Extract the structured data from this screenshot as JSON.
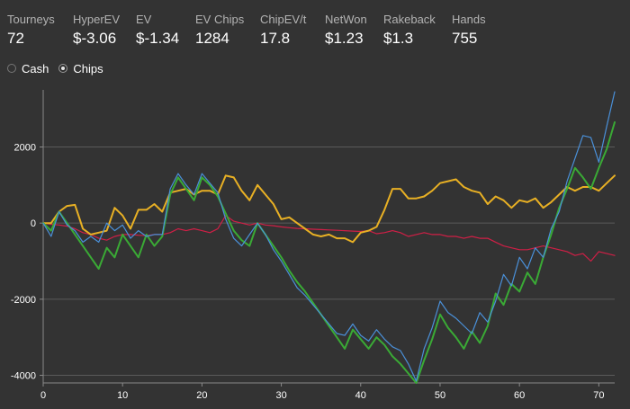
{
  "stats": [
    {
      "label": "Tourneys",
      "value": "72"
    },
    {
      "label": "HyperEV",
      "value": "$-3.06"
    },
    {
      "label": "EV",
      "value": "$-1.34"
    },
    {
      "label": "EV Chips",
      "value": "1284"
    },
    {
      "label": "ChipEV/t",
      "value": "17.8"
    },
    {
      "label": "NetWon",
      "value": "$1.23"
    },
    {
      "label": "Rakeback",
      "value": "$1.3"
    },
    {
      "label": "Hands",
      "value": "755"
    }
  ],
  "toggle": {
    "options": [
      {
        "label": "Cash",
        "selected": false
      },
      {
        "label": "Chips",
        "selected": true
      }
    ]
  },
  "chart_data": {
    "type": "line",
    "xlim": [
      0,
      72
    ],
    "ylim": [
      -4200,
      3500
    ],
    "x_ticks": [
      0,
      10,
      20,
      30,
      40,
      50,
      60,
      70
    ],
    "y_ticks": [
      -4000,
      -2000,
      0,
      2000
    ],
    "x_tick_labels": [
      "0",
      "10",
      "20",
      "30",
      "40",
      "50",
      "60",
      "70"
    ],
    "y_tick_labels": [
      "-4000",
      "-2000",
      "0",
      "2000"
    ],
    "grid": "horizontal",
    "series": [
      {
        "color": "#4a90d9",
        "x": [
          0,
          1,
          2,
          3,
          4,
          5,
          6,
          7,
          8,
          9,
          10,
          11,
          12,
          13,
          14,
          15,
          16,
          17,
          18,
          19,
          20,
          21,
          22,
          23,
          24,
          25,
          26,
          27,
          28,
          29,
          30,
          31,
          32,
          33,
          34,
          35,
          36,
          37,
          38,
          39,
          40,
          41,
          42,
          43,
          44,
          45,
          46,
          47,
          48,
          49,
          50,
          51,
          52,
          53,
          54,
          55,
          56,
          57,
          58,
          59,
          60,
          61,
          62,
          63,
          64,
          65,
          66,
          67,
          68,
          69,
          70,
          71,
          72
        ],
        "y": [
          0,
          -350,
          300,
          -50,
          -200,
          -500,
          -350,
          -500,
          0,
          -200,
          -50,
          -400,
          -200,
          -350,
          -300,
          -300,
          900,
          1300,
          1000,
          750,
          1300,
          1050,
          800,
          100,
          -400,
          -600,
          -300,
          0,
          -300,
          -700,
          -1000,
          -1350,
          -1700,
          -1900,
          -2150,
          -2400,
          -2650,
          -2900,
          -2950,
          -2650,
          -2950,
          -3100,
          -2800,
          -3050,
          -3250,
          -3350,
          -3700,
          -4150,
          -3300,
          -2750,
          -2050,
          -2350,
          -2500,
          -2700,
          -2900,
          -2350,
          -2600,
          -2050,
          -1350,
          -1650,
          -900,
          -1200,
          -650,
          -900,
          -150,
          300,
          1100,
          1700,
          2300,
          2250,
          1600,
          2550,
          3450
        ]
      },
      {
        "color": "#3aaa35",
        "x": [
          0,
          1,
          2,
          3,
          4,
          5,
          6,
          7,
          8,
          9,
          10,
          11,
          12,
          13,
          14,
          15,
          16,
          17,
          18,
          19,
          20,
          21,
          22,
          23,
          24,
          25,
          26,
          27,
          28,
          29,
          30,
          31,
          32,
          33,
          34,
          35,
          36,
          37,
          38,
          39,
          40,
          41,
          42,
          43,
          44,
          45,
          46,
          47,
          48,
          49,
          50,
          51,
          52,
          53,
          54,
          55,
          56,
          57,
          58,
          59,
          60,
          61,
          62,
          63,
          64,
          65,
          66,
          67,
          68,
          69,
          70,
          71,
          72
        ],
        "y": [
          0,
          -200,
          300,
          0,
          -300,
          -600,
          -900,
          -1200,
          -650,
          -900,
          -300,
          -600,
          -900,
          -300,
          -600,
          -350,
          750,
          1200,
          900,
          600,
          1200,
          1000,
          700,
          250,
          -200,
          -450,
          -600,
          0,
          -300,
          -600,
          -900,
          -1250,
          -1550,
          -1800,
          -2100,
          -2400,
          -2700,
          -3000,
          -3300,
          -2800,
          -3050,
          -3300,
          -3000,
          -3200,
          -3500,
          -3700,
          -3950,
          -4200,
          -3600,
          -3050,
          -2400,
          -2750,
          -3000,
          -3300,
          -2850,
          -3150,
          -2700,
          -1850,
          -2150,
          -1600,
          -1800,
          -1300,
          -1600,
          -900,
          -300,
          400,
          900,
          1450,
          1200,
          900,
          1450,
          1950,
          2650
        ]
      },
      {
        "color": "#e8b024",
        "x": [
          0,
          1,
          2,
          3,
          4,
          5,
          6,
          7,
          8,
          9,
          10,
          11,
          12,
          13,
          14,
          15,
          16,
          17,
          18,
          19,
          20,
          21,
          22,
          23,
          24,
          25,
          26,
          27,
          28,
          29,
          30,
          31,
          32,
          33,
          34,
          35,
          36,
          37,
          38,
          39,
          40,
          41,
          42,
          43,
          44,
          45,
          46,
          47,
          48,
          49,
          50,
          51,
          52,
          53,
          54,
          55,
          56,
          57,
          58,
          59,
          60,
          61,
          62,
          63,
          64,
          65,
          66,
          67,
          68,
          69,
          70,
          71,
          72
        ],
        "y": [
          0,
          0,
          300,
          450,
          480,
          -150,
          -300,
          -250,
          -200,
          400,
          200,
          -150,
          350,
          350,
          500,
          300,
          800,
          850,
          900,
          750,
          850,
          850,
          750,
          1250,
          1200,
          850,
          600,
          1000,
          750,
          500,
          100,
          150,
          0,
          -150,
          -300,
          -350,
          -300,
          -400,
          -400,
          -500,
          -250,
          -200,
          -100,
          350,
          900,
          900,
          650,
          650,
          700,
          850,
          1050,
          1100,
          1150,
          950,
          850,
          800,
          500,
          700,
          600,
          400,
          600,
          550,
          650,
          400,
          550,
          750,
          950,
          850,
          950,
          950,
          850,
          1050,
          1250
        ]
      },
      {
        "color": "#d01f46",
        "x": [
          0,
          1,
          2,
          3,
          4,
          5,
          6,
          7,
          8,
          9,
          10,
          11,
          12,
          13,
          14,
          15,
          16,
          17,
          18,
          19,
          20,
          21,
          22,
          23,
          24,
          25,
          26,
          27,
          28,
          29,
          30,
          31,
          32,
          33,
          34,
          35,
          36,
          37,
          38,
          39,
          40,
          41,
          42,
          43,
          44,
          45,
          46,
          47,
          48,
          49,
          50,
          51,
          52,
          53,
          54,
          55,
          56,
          57,
          58,
          59,
          60,
          61,
          62,
          63,
          64,
          65,
          66,
          67,
          68,
          69,
          70,
          71,
          72
        ],
        "y": [
          0,
          -30,
          -50,
          -80,
          -150,
          -250,
          -300,
          -400,
          -450,
          -350,
          -300,
          -300,
          -320,
          -330,
          -300,
          -300,
          -250,
          -150,
          -200,
          -150,
          -200,
          -250,
          -150,
          200,
          50,
          0,
          -50,
          0,
          -50,
          -70,
          -100,
          -120,
          -140,
          -150,
          -160,
          -170,
          -180,
          -190,
          -200,
          -210,
          -220,
          -200,
          -280,
          -250,
          -200,
          -250,
          -350,
          -300,
          -250,
          -300,
          -300,
          -350,
          -350,
          -400,
          -350,
          -400,
          -400,
          -500,
          -600,
          -650,
          -700,
          -700,
          -650,
          -600,
          -650,
          -700,
          -750,
          -850,
          -800,
          -1000,
          -750,
          -800,
          -850
        ]
      }
    ]
  }
}
